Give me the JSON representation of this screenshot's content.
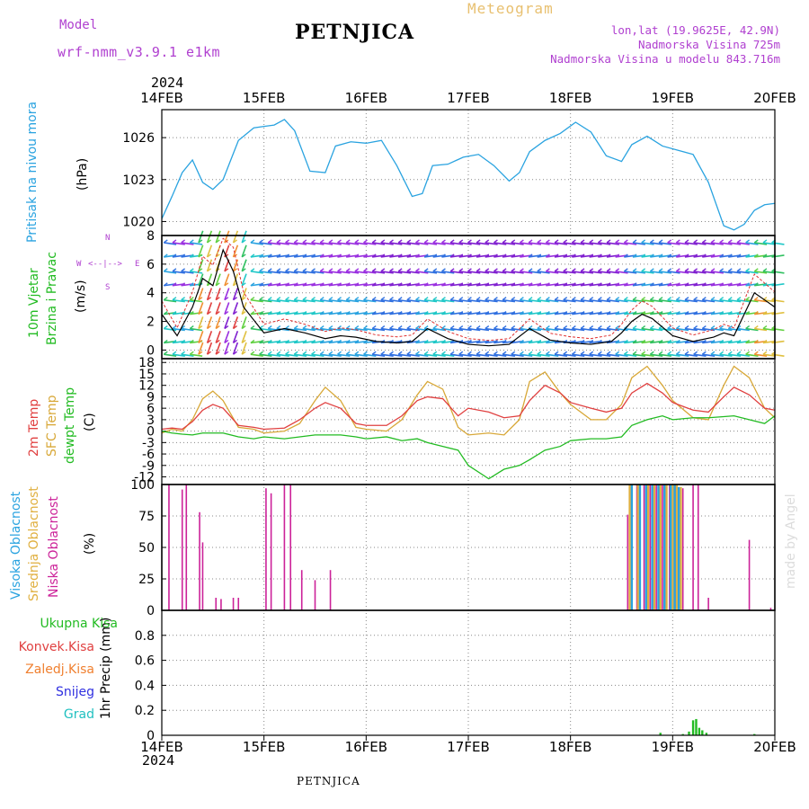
{
  "header": {
    "model_label": "Model",
    "model_name": "wrf-nmm_v3.9.1 e1km",
    "station": "PETNJICA",
    "product": "Meteogram",
    "lonlat": "lon,lat (19.9625E, 42.9N)",
    "altitude": "Nadmorska Visina 725m",
    "model_altitude": "Nadmorska Visina u modelu 843.716m",
    "year_top": "2024",
    "year_bottom": "2024",
    "footer_station": "PETNJICA",
    "credit": "made by Angel"
  },
  "colors": {
    "pressure": "#2aa3e0",
    "wind_label": "#22bb22",
    "temp2m": "#e04040",
    "sfc": "#d8a838",
    "dewpt": "#22bb22",
    "cloud_high": "#2aa3e0",
    "cloud_mid": "#e0b040",
    "cloud_low": "#cc2299",
    "purple": "#b040d0",
    "precip": "#22bb22",
    "konvek": "#e04040",
    "zaledj": "#f08030",
    "snijeg": "#3030e0",
    "grad": "#20c0c0"
  },
  "panels": {
    "pressure": {
      "label": "Pritisak na nivou mora",
      "unit": "(hPa)"
    },
    "wind": {
      "label1": "10m Vjetar",
      "label2": "Brzina i Pravac",
      "unit": "(m/s)",
      "compass_n": "N",
      "compass_s": "S",
      "compass_w": "W",
      "compass_e": "E",
      "compass_glyph": "<--|-->"
    },
    "temp": {
      "label_2m": "2m Temp",
      "label_sfc": "SFC Temp",
      "label_dew": "dewpt Temp",
      "unit": "(C)"
    },
    "cloud": {
      "label_high": "Visoka Oblacnost",
      "label_mid": "Srednja Oblacnost",
      "label_low": "Niska Oblacnost",
      "unit": "(%)"
    },
    "precip": {
      "unit": "1hr Precip (mm)",
      "legend": [
        "Ukupna Kisa",
        "Konvek.Kisa",
        "Zaledj.Kisa",
        "Snijeg",
        "Grad"
      ]
    }
  },
  "chart_data": {
    "type": "line",
    "x_ticks": [
      "14FEB",
      "15FEB",
      "16FEB",
      "17FEB",
      "18FEB",
      "19FEB",
      "20FEB"
    ],
    "x_range_days": [
      0,
      6
    ],
    "pressure": {
      "ylim": [
        1019,
        1028
      ],
      "yticks": [
        "1020",
        "1023",
        "1026"
      ],
      "x": [
        0,
        0.1,
        0.2,
        0.3,
        0.4,
        0.5,
        0.6,
        0.75,
        0.9,
        1.0,
        1.1,
        1.2,
        1.3,
        1.45,
        1.6,
        1.7,
        1.85,
        2.0,
        2.15,
        2.3,
        2.45,
        2.55,
        2.65,
        2.8,
        2.95,
        3.1,
        3.25,
        3.4,
        3.5,
        3.6,
        3.75,
        3.9,
        4.05,
        4.2,
        4.35,
        4.5,
        4.6,
        4.75,
        4.9,
        5.05,
        5.2,
        5.35,
        5.5,
        5.6,
        5.7,
        5.8,
        5.9,
        6.0
      ],
      "values": [
        1020.2,
        1021.8,
        1023.5,
        1024.4,
        1022.8,
        1022.3,
        1023.0,
        1025.8,
        1026.7,
        1026.8,
        1026.9,
        1027.3,
        1026.5,
        1023.6,
        1023.5,
        1025.4,
        1025.7,
        1025.6,
        1025.8,
        1024.0,
        1021.8,
        1022.0,
        1024.0,
        1024.1,
        1024.6,
        1024.8,
        1024.0,
        1022.9,
        1023.5,
        1025.0,
        1025.8,
        1026.3,
        1027.1,
        1026.4,
        1024.7,
        1024.3,
        1025.5,
        1026.1,
        1025.4,
        1025.1,
        1024.8,
        1022.8,
        1019.7,
        1019.4,
        1019.8,
        1020.8,
        1021.2,
        1021.3
      ]
    },
    "wind": {
      "ylim": [
        -0.6,
        8
      ],
      "yticks": [
        "0",
        "2",
        "4",
        "6",
        "8"
      ],
      "x": [
        0,
        0.15,
        0.3,
        0.4,
        0.5,
        0.6,
        0.7,
        0.8,
        1.0,
        1.2,
        1.4,
        1.6,
        1.75,
        1.9,
        2.1,
        2.3,
        2.45,
        2.6,
        2.8,
        3.0,
        3.2,
        3.4,
        3.6,
        3.8,
        4.0,
        4.2,
        4.4,
        4.5,
        4.6,
        4.7,
        4.8,
        5.0,
        5.2,
        5.4,
        5.5,
        5.6,
        5.7,
        5.8,
        5.9,
        6.0
      ],
      "speed": [
        2.5,
        1.0,
        3.0,
        5.0,
        4.5,
        7.0,
        5.5,
        3.0,
        1.2,
        1.5,
        1.2,
        0.8,
        1.0,
        0.9,
        0.6,
        0.5,
        0.6,
        1.5,
        0.8,
        0.4,
        0.3,
        0.4,
        1.5,
        0.7,
        0.5,
        0.4,
        0.6,
        1.2,
        2.0,
        2.5,
        2.2,
        1.0,
        0.6,
        0.9,
        1.2,
        1.0,
        2.5,
        4.0,
        3.5,
        3.0
      ]
    },
    "temp": {
      "ylim": [
        -14,
        19
      ],
      "yticks": [
        "-12",
        "-9",
        "-6",
        "-3",
        "0",
        "3",
        "6",
        "9",
        "12",
        "15",
        "18"
      ],
      "x": [
        0,
        0.1,
        0.2,
        0.3,
        0.4,
        0.5,
        0.6,
        0.75,
        0.9,
        1.0,
        1.2,
        1.35,
        1.5,
        1.6,
        1.75,
        1.9,
        2.0,
        2.2,
        2.35,
        2.5,
        2.6,
        2.75,
        2.9,
        3.0,
        3.2,
        3.35,
        3.5,
        3.6,
        3.75,
        3.9,
        4.0,
        4.2,
        4.35,
        4.5,
        4.6,
        4.75,
        4.9,
        5.0,
        5.2,
        5.35,
        5.5,
        5.6,
        5.75,
        5.9,
        6.0
      ],
      "t2m": [
        0.5,
        0.8,
        0.5,
        2.5,
        5.5,
        7.0,
        6.0,
        1.5,
        1.0,
        0.5,
        0.8,
        3.0,
        6.0,
        7.5,
        6.0,
        2.0,
        1.5,
        1.5,
        4.0,
        8.0,
        9.0,
        8.5,
        4.0,
        6.0,
        5.0,
        3.5,
        4.0,
        8.0,
        12.0,
        10.0,
        7.5,
        6.0,
        5.0,
        6.0,
        10.0,
        12.5,
        10.0,
        7.5,
        5.5,
        5.0,
        9.0,
        11.5,
        9.5,
        6.0,
        5.5
      ],
      "sfc": [
        -0.5,
        0.5,
        0.0,
        3.0,
        8.5,
        10.5,
        8.0,
        1.0,
        0.5,
        -0.5,
        0.0,
        2.0,
        8.0,
        11.5,
        8.0,
        1.0,
        0.5,
        0.0,
        3.0,
        9.5,
        13.0,
        11.0,
        1.0,
        -1.0,
        -0.5,
        -1.0,
        3.0,
        13.0,
        15.5,
        10.0,
        7.0,
        3.0,
        3.0,
        7.0,
        14.0,
        17.0,
        12.0,
        8.0,
        3.5,
        3.0,
        12.0,
        17.0,
        14.0,
        6.0,
        3.5
      ],
      "dewpt": [
        0.0,
        -0.5,
        -0.8,
        -1.0,
        -0.5,
        -0.5,
        -0.5,
        -1.5,
        -2.0,
        -1.5,
        -2.0,
        -1.5,
        -1.0,
        -1.0,
        -1.0,
        -1.5,
        -2.0,
        -1.5,
        -2.5,
        -2.0,
        -3.0,
        -4.0,
        -5.0,
        -9.0,
        -12.5,
        -10.0,
        -9.0,
        -7.5,
        -5.0,
        -4.0,
        -2.5,
        -2.0,
        -2.0,
        -1.5,
        1.5,
        3.0,
        4.0,
        3.0,
        3.5,
        3.5,
        3.8,
        4.0,
        3.0,
        2.0,
        4.0
      ]
    },
    "cloud": {
      "ylim": [
        0,
        100
      ],
      "yticks": [
        "0",
        "25",
        "50",
        "75",
        "100"
      ],
      "low_bars": [
        [
          0.07,
          100
        ],
        [
          0.2,
          96
        ],
        [
          0.24,
          100
        ],
        [
          0.37,
          78
        ],
        [
          0.4,
          54
        ],
        [
          0.53,
          10
        ],
        [
          0.58,
          9
        ],
        [
          0.7,
          10
        ],
        [
          0.75,
          10
        ],
        [
          1.02,
          97
        ],
        [
          1.07,
          93
        ],
        [
          1.2,
          100
        ],
        [
          1.26,
          100
        ],
        [
          1.37,
          32
        ],
        [
          1.5,
          24
        ],
        [
          1.65,
          32
        ],
        [
          4.56,
          76
        ],
        [
          4.65,
          100
        ],
        [
          4.72,
          100
        ],
        [
          4.78,
          100
        ],
        [
          4.84,
          100
        ],
        [
          4.9,
          100
        ],
        [
          4.97,
          100
        ],
        [
          5.03,
          100
        ],
        [
          5.1,
          97
        ],
        [
          5.2,
          100
        ],
        [
          5.25,
          100
        ],
        [
          5.35,
          10
        ],
        [
          5.75,
          56
        ],
        [
          5.96,
          2
        ]
      ],
      "high_bars": [
        [
          4.6,
          100
        ],
        [
          4.68,
          100
        ],
        [
          4.74,
          100
        ],
        [
          4.8,
          100
        ],
        [
          4.86,
          100
        ],
        [
          4.92,
          100
        ],
        [
          4.98,
          100
        ],
        [
          5.02,
          100
        ],
        [
          5.06,
          98
        ]
      ],
      "mid_bars": [
        [
          4.58,
          100
        ],
        [
          4.66,
          100
        ],
        [
          4.76,
          100
        ],
        [
          4.82,
          100
        ],
        [
          4.88,
          100
        ],
        [
          4.94,
          100
        ],
        [
          5.0,
          100
        ],
        [
          5.04,
          100
        ],
        [
          5.08,
          98
        ]
      ]
    },
    "precip": {
      "ylim": [
        0,
        1.0
      ],
      "yticks": [
        "0",
        "0.2",
        "0.4",
        "0.6",
        "0.8"
      ],
      "bars": [
        [
          4.88,
          0.02
        ],
        [
          5.1,
          0.01
        ],
        [
          5.16,
          0.03
        ],
        [
          5.2,
          0.12
        ],
        [
          5.23,
          0.13
        ],
        [
          5.26,
          0.06
        ],
        [
          5.29,
          0.04
        ],
        [
          5.33,
          0.02
        ],
        [
          5.8,
          0.01
        ]
      ]
    }
  }
}
